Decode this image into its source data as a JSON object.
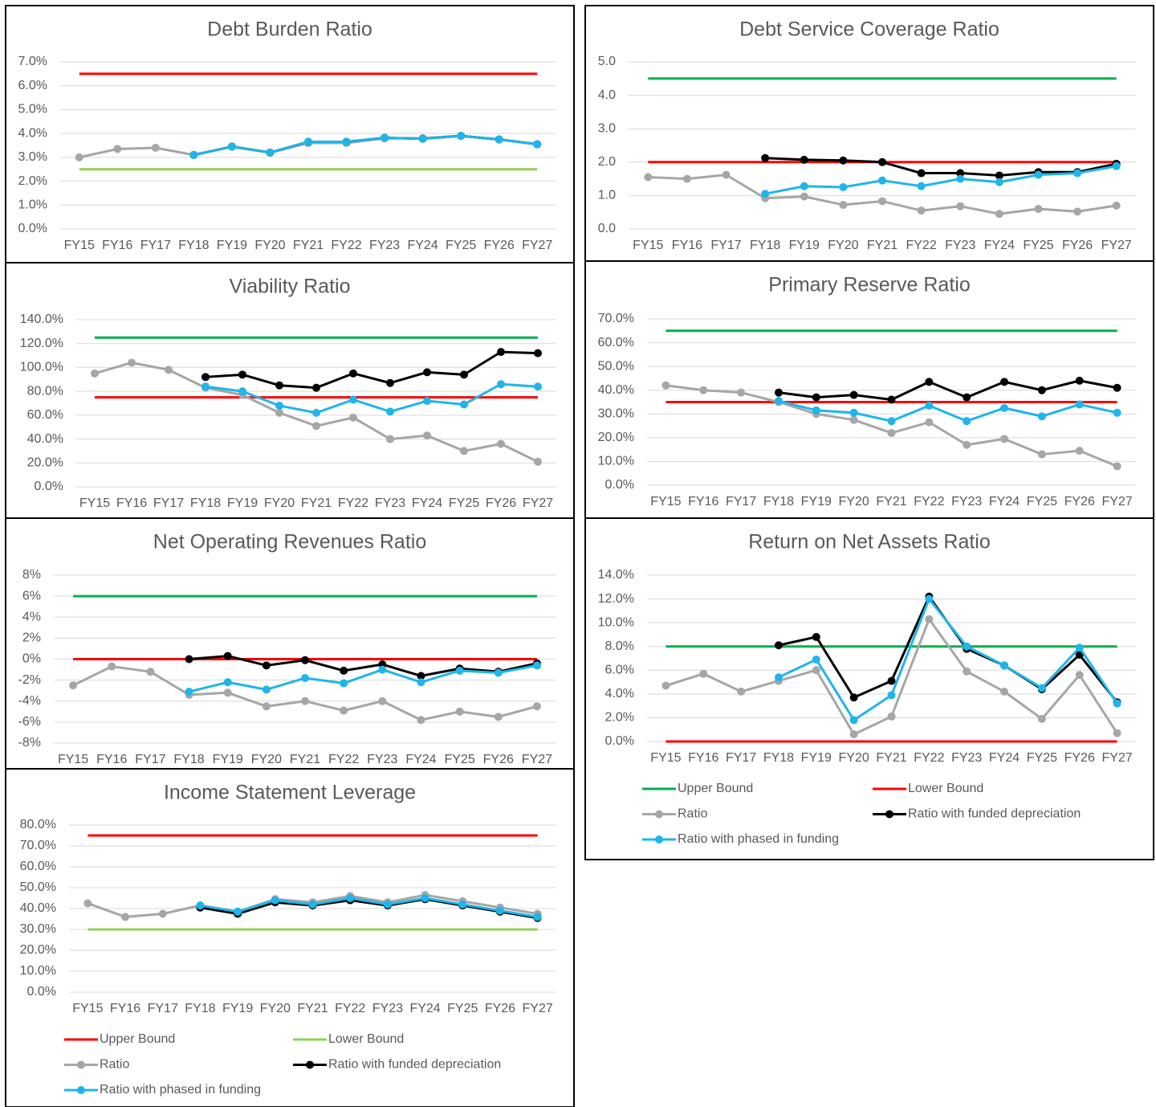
{
  "chart_data": [
    {
      "type": "line",
      "title": "Debt Burden Ratio",
      "categories": [
        "FY15",
        "FY16",
        "FY17",
        "FY18",
        "FY19",
        "FY20",
        "FY21",
        "FY22",
        "FY23",
        "FY24",
        "FY25",
        "FY26",
        "FY27"
      ],
      "ylim": [
        0,
        7
      ],
      "yticks": [
        {
          "value": 0,
          "label": "0.0%"
        },
        {
          "value": 1,
          "label": "1.0%"
        },
        {
          "value": 2,
          "label": "2.0%"
        },
        {
          "value": 3,
          "label": "3.0%"
        },
        {
          "value": 4,
          "label": "4.0%"
        },
        {
          "value": 5,
          "label": "5.0%"
        },
        {
          "value": 6,
          "label": "6.0%"
        },
        {
          "value": 7,
          "label": "7.0%"
        }
      ],
      "grid": true,
      "series": [
        {
          "color": "#ff0000",
          "marker": false,
          "values": [
            6.5,
            6.5,
            6.5,
            6.5,
            6.5,
            6.5,
            6.5,
            6.5,
            6.5,
            6.5,
            6.5,
            6.5,
            6.5
          ]
        },
        {
          "color": "#92d050",
          "marker": false,
          "values": [
            2.5,
            2.5,
            2.5,
            2.5,
            2.5,
            2.5,
            2.5,
            2.5,
            2.5,
            2.5,
            2.5,
            2.5,
            2.5
          ]
        },
        {
          "color": "#a6a6a6",
          "marker": true,
          "values": [
            3.0,
            3.35,
            3.4,
            3.1,
            3.45,
            3.2,
            3.6,
            3.6,
            3.8,
            3.8,
            3.9,
            3.75,
            3.55
          ]
        },
        {
          "color": "#000000",
          "marker": true,
          "values": [
            null,
            null,
            null,
            3.1,
            3.45,
            3.2,
            3.65,
            3.65,
            3.82,
            3.78,
            3.9,
            3.75,
            3.55
          ]
        },
        {
          "color": "#1fb5ea",
          "marker": true,
          "values": [
            null,
            null,
            null,
            3.1,
            3.45,
            3.2,
            3.65,
            3.65,
            3.82,
            3.78,
            3.9,
            3.75,
            3.55
          ]
        }
      ]
    },
    {
      "type": "line",
      "title": "Debt Service Coverage Ratio",
      "categories": [
        "FY15",
        "FY16",
        "FY17",
        "FY18",
        "FY19",
        "FY20",
        "FY21",
        "FY22",
        "FY23",
        "FY24",
        "FY25",
        "FY26",
        "FY27"
      ],
      "ylim": [
        0,
        5
      ],
      "yticks": [
        {
          "value": 0,
          "label": "0.0"
        },
        {
          "value": 1,
          "label": "1.0"
        },
        {
          "value": 2,
          "label": "2.0"
        },
        {
          "value": 3,
          "label": "3.0"
        },
        {
          "value": 4,
          "label": "4.0"
        },
        {
          "value": 5,
          "label": "5.0"
        }
      ],
      "grid": true,
      "series": [
        {
          "color": "#00b050",
          "marker": false,
          "values": [
            4.5,
            4.5,
            4.5,
            4.5,
            4.5,
            4.5,
            4.5,
            4.5,
            4.5,
            4.5,
            4.5,
            4.5,
            4.5
          ]
        },
        {
          "color": "#ff0000",
          "marker": false,
          "values": [
            2.0,
            2.0,
            2.0,
            2.0,
            2.0,
            2.0,
            2.0,
            2.0,
            2.0,
            2.0,
            2.0,
            2.0,
            2.0
          ]
        },
        {
          "color": "#a6a6a6",
          "marker": true,
          "values": [
            1.55,
            1.5,
            1.62,
            0.92,
            0.97,
            0.72,
            0.83,
            0.55,
            0.68,
            0.45,
            0.6,
            0.52,
            0.7
          ]
        },
        {
          "color": "#000000",
          "marker": true,
          "values": [
            null,
            null,
            null,
            2.12,
            2.07,
            2.05,
            2.0,
            1.67,
            1.67,
            1.6,
            1.7,
            1.7,
            1.95
          ]
        },
        {
          "color": "#1fb5ea",
          "marker": true,
          "values": [
            null,
            null,
            null,
            1.05,
            1.28,
            1.25,
            1.45,
            1.28,
            1.5,
            1.4,
            1.62,
            1.67,
            1.88
          ]
        }
      ]
    },
    {
      "type": "line",
      "title": "Viability Ratio",
      "categories": [
        "FY15",
        "FY16",
        "FY17",
        "FY18",
        "FY19",
        "FY20",
        "FY21",
        "FY22",
        "FY23",
        "FY24",
        "FY25",
        "FY26",
        "FY27"
      ],
      "ylim": [
        0,
        140
      ],
      "yticks": [
        {
          "value": 0,
          "label": "0.0%"
        },
        {
          "value": 20,
          "label": "20.0%"
        },
        {
          "value": 40,
          "label": "40.0%"
        },
        {
          "value": 60,
          "label": "60.0%"
        },
        {
          "value": 80,
          "label": "80.0%"
        },
        {
          "value": 100,
          "label": "100.0%"
        },
        {
          "value": 120,
          "label": "120.0%"
        },
        {
          "value": 140,
          "label": "140.0%"
        }
      ],
      "grid": true,
      "series": [
        {
          "color": "#00b050",
          "marker": false,
          "values": [
            125,
            125,
            125,
            125,
            125,
            125,
            125,
            125,
            125,
            125,
            125,
            125,
            125
          ]
        },
        {
          "color": "#ff0000",
          "marker": false,
          "values": [
            75,
            75,
            75,
            75,
            75,
            75,
            75,
            75,
            75,
            75,
            75,
            75,
            75
          ]
        },
        {
          "color": "#a6a6a6",
          "marker": true,
          "values": [
            95,
            104,
            98,
            83,
            77,
            62,
            51,
            58,
            40,
            43,
            30,
            36,
            21
          ]
        },
        {
          "color": "#000000",
          "marker": true,
          "values": [
            null,
            null,
            null,
            92,
            94,
            85,
            83,
            95,
            87,
            96,
            94,
            113,
            112
          ]
        },
        {
          "color": "#1fb5ea",
          "marker": true,
          "values": [
            null,
            null,
            null,
            84,
            80,
            68,
            62,
            73,
            63,
            72,
            69,
            86,
            84
          ]
        }
      ]
    },
    {
      "type": "line",
      "title": "Primary Reserve Ratio",
      "categories": [
        "FY15",
        "FY16",
        "FY17",
        "FY18",
        "FY19",
        "FY20",
        "FY21",
        "FY22",
        "FY23",
        "FY24",
        "FY25",
        "FY26",
        "FY27"
      ],
      "ylim": [
        0,
        70
      ],
      "yticks": [
        {
          "value": 0,
          "label": "0.0%"
        },
        {
          "value": 10,
          "label": "10.0%"
        },
        {
          "value": 20,
          "label": "20.0%"
        },
        {
          "value": 30,
          "label": "30.0%"
        },
        {
          "value": 40,
          "label": "40.0%"
        },
        {
          "value": 50,
          "label": "50.0%"
        },
        {
          "value": 60,
          "label": "60.0%"
        },
        {
          "value": 70,
          "label": "70.0%"
        }
      ],
      "grid": true,
      "series": [
        {
          "color": "#00b050",
          "marker": false,
          "values": [
            65,
            65,
            65,
            65,
            65,
            65,
            65,
            65,
            65,
            65,
            65,
            65,
            65
          ]
        },
        {
          "color": "#ff0000",
          "marker": false,
          "values": [
            35,
            35,
            35,
            35,
            35,
            35,
            35,
            35,
            35,
            35,
            35,
            35,
            35
          ]
        },
        {
          "color": "#a6a6a6",
          "marker": true,
          "values": [
            42,
            40,
            39,
            35,
            30,
            27.5,
            22,
            26.5,
            17,
            19.5,
            13,
            14.5,
            8
          ]
        },
        {
          "color": "#000000",
          "marker": true,
          "values": [
            null,
            null,
            null,
            39,
            37,
            38,
            36,
            43.5,
            37,
            43.5,
            40,
            44,
            41
          ]
        },
        {
          "color": "#1fb5ea",
          "marker": true,
          "values": [
            null,
            null,
            null,
            35.5,
            31.5,
            30.5,
            27,
            33.5,
            27,
            32.5,
            29,
            34,
            30.5
          ]
        }
      ]
    },
    {
      "type": "line",
      "title": "Net Operating Revenues Ratio",
      "categories": [
        "FY15",
        "FY16",
        "FY17",
        "FY18",
        "FY19",
        "FY20",
        "FY21",
        "FY22",
        "FY23",
        "FY24",
        "FY25",
        "FY26",
        "FY27"
      ],
      "ylim": [
        -8,
        8
      ],
      "yticks": [
        {
          "value": -8,
          "label": "-8%"
        },
        {
          "value": -6,
          "label": "-6%"
        },
        {
          "value": -4,
          "label": "-4%"
        },
        {
          "value": -2,
          "label": "-2%"
        },
        {
          "value": 0,
          "label": "0%"
        },
        {
          "value": 2,
          "label": "2%"
        },
        {
          "value": 4,
          "label": "4%"
        },
        {
          "value": 6,
          "label": "6%"
        },
        {
          "value": 8,
          "label": "8%"
        }
      ],
      "grid": true,
      "series": [
        {
          "color": "#00b050",
          "marker": false,
          "values": [
            6,
            6,
            6,
            6,
            6,
            6,
            6,
            6,
            6,
            6,
            6,
            6,
            6
          ]
        },
        {
          "color": "#ff0000",
          "marker": false,
          "values": [
            0,
            0,
            0,
            0,
            0,
            0,
            0,
            0,
            0,
            0,
            0,
            0,
            0
          ]
        },
        {
          "color": "#a6a6a6",
          "marker": true,
          "values": [
            -2.5,
            -0.7,
            -1.2,
            -3.4,
            -3.2,
            -4.5,
            -4.0,
            -4.9,
            -4.0,
            -5.8,
            -5.0,
            -5.5,
            -4.5
          ]
        },
        {
          "color": "#000000",
          "marker": true,
          "values": [
            null,
            null,
            null,
            0.0,
            0.3,
            -0.6,
            -0.1,
            -1.1,
            -0.5,
            -1.6,
            -0.9,
            -1.2,
            -0.4
          ]
        },
        {
          "color": "#1fb5ea",
          "marker": true,
          "values": [
            null,
            null,
            null,
            -3.1,
            -2.2,
            -2.9,
            -1.8,
            -2.3,
            -1.0,
            -2.2,
            -1.1,
            -1.3,
            -0.6
          ]
        }
      ]
    },
    {
      "type": "line",
      "title": "Return on Net Assets Ratio",
      "categories": [
        "FY15",
        "FY16",
        "FY17",
        "FY18",
        "FY19",
        "FY20",
        "FY21",
        "FY22",
        "FY23",
        "FY24",
        "FY25",
        "FY26",
        "FY27"
      ],
      "ylim": [
        0,
        14
      ],
      "yticks": [
        {
          "value": 0,
          "label": "0.0%"
        },
        {
          "value": 2,
          "label": "2.0%"
        },
        {
          "value": 4,
          "label": "4.0%"
        },
        {
          "value": 6,
          "label": "6.0%"
        },
        {
          "value": 8,
          "label": "8.0%"
        },
        {
          "value": 10,
          "label": "10.0%"
        },
        {
          "value": 12,
          "label": "12.0%"
        },
        {
          "value": 14,
          "label": "14.0%"
        }
      ],
      "grid": true,
      "legend": "bottom",
      "series": [
        {
          "name": "Upper Bound",
          "color": "#00b050",
          "marker": false,
          "values": [
            8,
            8,
            8,
            8,
            8,
            8,
            8,
            8,
            8,
            8,
            8,
            8,
            8
          ]
        },
        {
          "name": "Lower Bound",
          "color": "#ff0000",
          "marker": false,
          "values": [
            0,
            0,
            0,
            0,
            0,
            0,
            0,
            0,
            0,
            0,
            0,
            0,
            0
          ]
        },
        {
          "name": "Ratio",
          "color": "#a6a6a6",
          "marker": true,
          "values": [
            4.7,
            5.7,
            4.2,
            5.1,
            6.0,
            0.6,
            2.1,
            10.3,
            5.9,
            4.2,
            1.9,
            5.6,
            0.7
          ]
        },
        {
          "name": "Ratio with funded depreciation",
          "color": "#000000",
          "marker": true,
          "values": [
            null,
            null,
            null,
            8.1,
            8.8,
            3.7,
            5.1,
            12.2,
            7.8,
            6.4,
            4.4,
            7.3,
            3.3
          ]
        },
        {
          "name": "Ratio with phased in funding",
          "color": "#1fb5ea",
          "marker": true,
          "values": [
            null,
            null,
            null,
            5.4,
            6.9,
            1.8,
            3.9,
            12.0,
            8.0,
            6.4,
            4.5,
            7.9,
            3.2
          ]
        }
      ]
    },
    {
      "type": "line",
      "title": "Income Statement Leverage",
      "categories": [
        "FY15",
        "FY16",
        "FY17",
        "FY18",
        "FY19",
        "FY20",
        "FY21",
        "FY22",
        "FY23",
        "FY24",
        "FY25",
        "FY26",
        "FY27"
      ],
      "ylim": [
        0,
        80
      ],
      "yticks": [
        {
          "value": 0,
          "label": "0.0%"
        },
        {
          "value": 10,
          "label": "10.0%"
        },
        {
          "value": 20,
          "label": "20.0%"
        },
        {
          "value": 30,
          "label": "30.0%"
        },
        {
          "value": 40,
          "label": "40.0%"
        },
        {
          "value": 50,
          "label": "50.0%"
        },
        {
          "value": 60,
          "label": "60.0%"
        },
        {
          "value": 70,
          "label": "70.0%"
        },
        {
          "value": 80,
          "label": "80.0%"
        }
      ],
      "grid": true,
      "legend": "bottom",
      "series": [
        {
          "name": "Upper Bound",
          "color": "#ff0000",
          "marker": false,
          "values": [
            75,
            75,
            75,
            75,
            75,
            75,
            75,
            75,
            75,
            75,
            75,
            75,
            75
          ]
        },
        {
          "name": "Lower Bound",
          "color": "#92d050",
          "marker": false,
          "values": [
            30,
            30,
            30,
            30,
            30,
            30,
            30,
            30,
            30,
            30,
            30,
            30,
            30
          ]
        },
        {
          "name": "Ratio",
          "color": "#a6a6a6",
          "marker": true,
          "values": [
            42.5,
            36,
            37.5,
            41.5,
            38.5,
            44.5,
            43,
            46,
            43,
            46.5,
            43.5,
            40.5,
            37.5
          ]
        },
        {
          "name": "Ratio with funded depreciation",
          "color": "#000000",
          "marker": true,
          "values": [
            null,
            null,
            null,
            40.5,
            37.5,
            43,
            41.5,
            44,
            41.5,
            44.5,
            41.5,
            38.5,
            35.5
          ]
        },
        {
          "name": "Ratio with phased in funding",
          "color": "#1fb5ea",
          "marker": true,
          "values": [
            null,
            null,
            null,
            41.5,
            38.5,
            44,
            42,
            45,
            42,
            45,
            42,
            39,
            36
          ]
        }
      ]
    }
  ]
}
